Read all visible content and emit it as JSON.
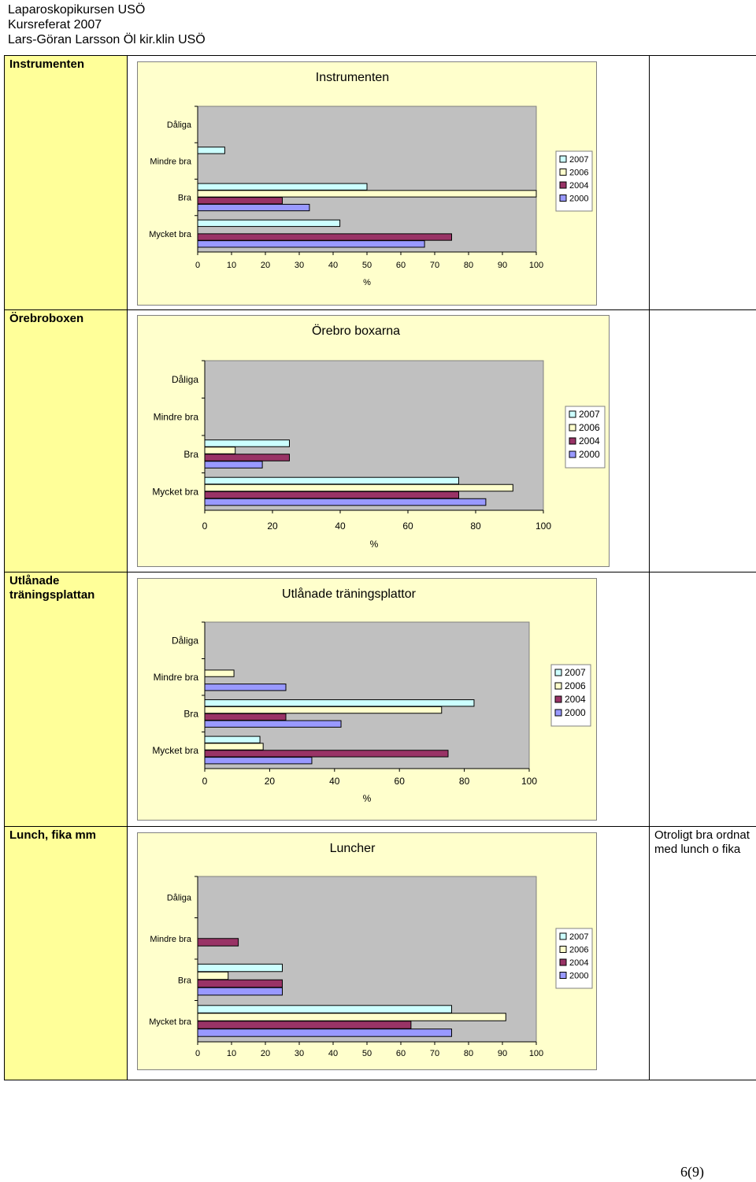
{
  "header": {
    "line1": "Laparoskopikursen USÖ",
    "line2": "Kursreferat 2007",
    "line3": "Lars-Göran Larsson Öl kir.klin USÖ"
  },
  "rows": [
    {
      "label": "Instrumenten",
      "comment": ""
    },
    {
      "label": "Örebroboxen",
      "comment": ""
    },
    {
      "label": "Utlånade träningsplattan",
      "comment": ""
    },
    {
      "label": "Lunch, fika mm",
      "comment": "Otroligt bra ordnat med lunch o fika"
    }
  ],
  "colors": {
    "plot_bg": "#c0c0c0",
    "chart_bg": "#ffffcc",
    "s2007": "#ccffff",
    "s2006": "#ffffcc",
    "s2004": "#993366",
    "s2000": "#9999ff"
  },
  "chart_data": [
    {
      "type": "bar",
      "orientation": "horizontal",
      "title": "Instrumenten",
      "xlabel": "%",
      "xlim": [
        0,
        100
      ],
      "xticks": [
        "0",
        "10",
        "20",
        "30",
        "40",
        "50",
        "60",
        "70",
        "80",
        "90",
        "100"
      ],
      "categories": [
        "Dåliga",
        "Mindre bra",
        "Bra",
        "Mycket bra"
      ],
      "series": [
        {
          "name": "2007",
          "values": [
            0,
            8,
            50,
            42
          ]
        },
        {
          "name": "2006",
          "values": [
            0,
            0,
            100,
            0
          ]
        },
        {
          "name": "2004",
          "values": [
            0,
            0,
            25,
            75
          ]
        },
        {
          "name": "2000",
          "values": [
            0,
            0,
            33,
            67
          ]
        }
      ]
    },
    {
      "type": "bar",
      "orientation": "horizontal",
      "title": "Örebro boxarna",
      "xlabel": "%",
      "xlim": [
        0,
        100
      ],
      "xticks": [
        "0",
        "20",
        "40",
        "60",
        "80",
        "100"
      ],
      "categories": [
        "Dåliga",
        "Mindre bra",
        "Bra",
        "Mycket bra"
      ],
      "series": [
        {
          "name": "2007",
          "values": [
            0,
            0,
            25,
            75
          ]
        },
        {
          "name": "2006",
          "values": [
            0,
            0,
            9,
            91
          ]
        },
        {
          "name": "2004",
          "values": [
            0,
            0,
            25,
            75
          ]
        },
        {
          "name": "2000",
          "values": [
            0,
            0,
            17,
            83
          ]
        }
      ]
    },
    {
      "type": "bar",
      "orientation": "horizontal",
      "title": "Utlånade träningsplattor",
      "xlabel": "%",
      "xlim": [
        0,
        100
      ],
      "xticks": [
        "0",
        "20",
        "40",
        "60",
        "80",
        "100"
      ],
      "categories": [
        "Dåliga",
        "Mindre bra",
        "Bra",
        "Mycket bra"
      ],
      "series": [
        {
          "name": "2007",
          "values": [
            0,
            0,
            83,
            17
          ]
        },
        {
          "name": "2006",
          "values": [
            0,
            9,
            73,
            18
          ]
        },
        {
          "name": "2004",
          "values": [
            0,
            0,
            25,
            75
          ]
        },
        {
          "name": "2000",
          "values": [
            0,
            25,
            42,
            33
          ]
        }
      ]
    },
    {
      "type": "bar",
      "orientation": "horizontal",
      "title": "Luncher",
      "xlabel": "",
      "xlim": [
        0,
        100
      ],
      "xticks": [
        "0",
        "10",
        "20",
        "30",
        "40",
        "50",
        "60",
        "70",
        "80",
        "90",
        "100"
      ],
      "categories": [
        "Dåliga",
        "Mindre bra",
        "Bra",
        "Mycket bra"
      ],
      "series": [
        {
          "name": "2007",
          "values": [
            0,
            0,
            25,
            75
          ]
        },
        {
          "name": "2006",
          "values": [
            0,
            0,
            9,
            91
          ]
        },
        {
          "name": "2004",
          "values": [
            0,
            12,
            25,
            63
          ]
        },
        {
          "name": "2000",
          "values": [
            0,
            0,
            25,
            75
          ]
        }
      ]
    }
  ],
  "page_number": "6(9)"
}
